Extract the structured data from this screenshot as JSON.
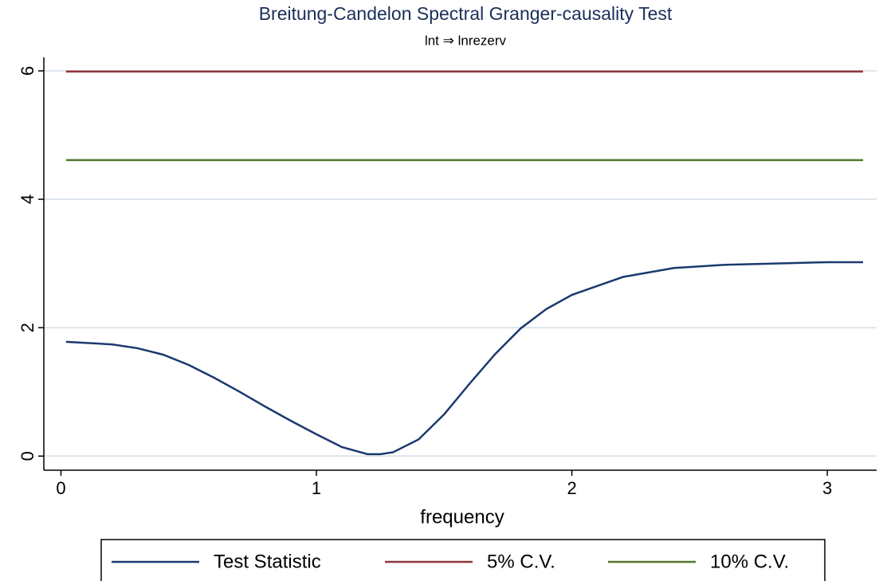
{
  "chart_data": {
    "type": "line",
    "title": "Breitung-Candelon Spectral Granger-causality Test",
    "subtitle": "lnt ⇒ lnrezerv",
    "x_label": "frequency",
    "x": [
      0.02,
      0.2,
      0.3,
      0.4,
      0.5,
      0.6,
      0.7,
      0.8,
      0.9,
      1.0,
      1.1,
      1.2,
      1.25,
      1.3,
      1.4,
      1.5,
      1.6,
      1.7,
      1.8,
      1.9,
      2.0,
      2.2,
      2.4,
      2.6,
      2.8,
      3.0,
      3.14
    ],
    "series": [
      {
        "name": "Test Statistic",
        "color": "#1a3a6e",
        "values": [
          1.78,
          1.74,
          1.68,
          1.58,
          1.42,
          1.22,
          1.0,
          0.77,
          0.55,
          0.34,
          0.14,
          0.03,
          0.03,
          0.06,
          0.26,
          0.65,
          1.13,
          1.59,
          1.99,
          2.29,
          2.51,
          2.79,
          2.93,
          2.98,
          3.0,
          3.02,
          3.02
        ]
      },
      {
        "name": "5% C.V.",
        "color": "#90353b",
        "values": [
          5.99,
          5.99,
          5.99,
          5.99,
          5.99,
          5.99,
          5.99,
          5.99,
          5.99,
          5.99,
          5.99,
          5.99,
          5.99,
          5.99,
          5.99,
          5.99,
          5.99,
          5.99,
          5.99,
          5.99,
          5.99,
          5.99,
          5.99,
          5.99,
          5.99,
          5.99,
          5.99
        ]
      },
      {
        "name": "10% C.V.",
        "color": "#55752f",
        "values": [
          4.61,
          4.61,
          4.61,
          4.61,
          4.61,
          4.61,
          4.61,
          4.61,
          4.61,
          4.61,
          4.61,
          4.61,
          4.61,
          4.61,
          4.61,
          4.61,
          4.61,
          4.61,
          4.61,
          4.61,
          4.61,
          4.61,
          4.61,
          4.61,
          4.61,
          4.61,
          4.61
        ]
      }
    ],
    "xlim": [
      -0.067,
      3.193
    ],
    "xticks": [
      0,
      1,
      2,
      3
    ],
    "ylim": [
      -0.22,
      6.21
    ],
    "yticks": [
      0,
      2,
      4,
      6
    ],
    "grid": true
  }
}
